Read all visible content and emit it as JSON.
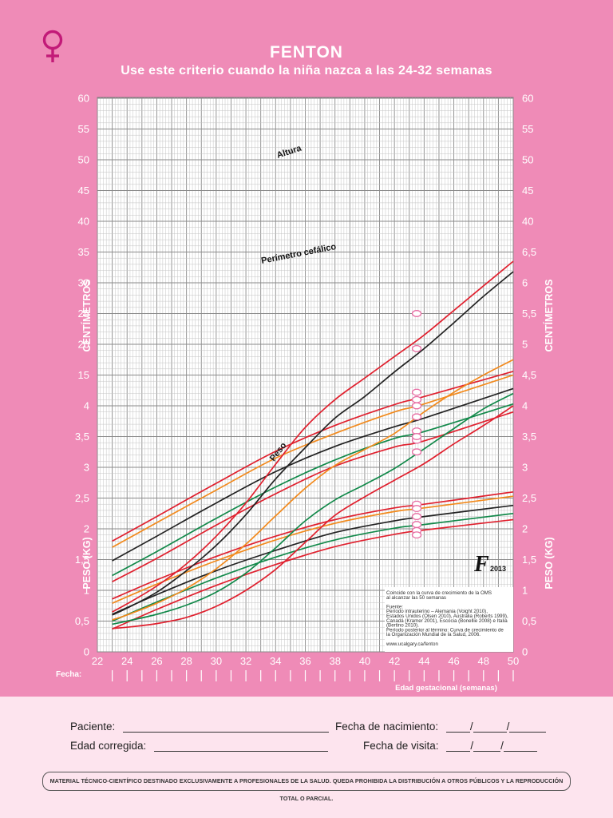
{
  "header": {
    "title": "FENTON",
    "subtitle": "Use este criterio cuando la niña nazca a las 24-32 semanas"
  },
  "chart_data": {
    "type": "line",
    "x": {
      "label": "Edad gestacional (semanas)",
      "range": [
        22,
        50
      ],
      "ticks": [
        "22",
        "24",
        "26",
        "28",
        "30",
        "32",
        "34",
        "36",
        "38",
        "40",
        "42",
        "44",
        "46",
        "48",
        "50"
      ]
    },
    "y_cm": {
      "label": "CENTÍMETROS",
      "ticks": [
        "15",
        "20",
        "25",
        "30",
        "35",
        "40",
        "45",
        "50",
        "55",
        "60"
      ]
    },
    "y_kg": {
      "label": "PESO (KG)",
      "ticks": [
        "0",
        "0,5",
        "1",
        "1,5",
        "2",
        "2,5",
        "3",
        "3,5",
        "4",
        "4,5",
        "5",
        "5,5",
        "6",
        "6,5"
      ]
    },
    "left_ticks": [
      "0",
      "0,5",
      "1",
      "1,5",
      "2",
      "2,5",
      "3",
      "3,5",
      "4",
      "15",
      "20",
      "25",
      "30",
      "35",
      "40",
      "45",
      "50",
      "55",
      "60"
    ],
    "right_ticks": [
      "0",
      "0,5",
      "1",
      "1,5",
      "2",
      "2,5",
      "3",
      "3,5",
      "4",
      "4,5",
      "5",
      "5,5",
      "6",
      "6,5",
      "40",
      "45",
      "50",
      "55",
      "60"
    ],
    "curve_labels": {
      "length": "Altura",
      "head": "Perímetro cefálico",
      "weight": "Peso"
    },
    "colors": {
      "p97": "#e0202e",
      "p90": "#f28a1d",
      "p50": "#222222",
      "p10": "#12894a",
      "p3": "#e0202e"
    },
    "length_cm": [
      {
        "percentile": "97",
        "x": [
          23,
          26,
          30,
          34,
          38,
          42,
          44,
          50
        ],
        "y": [
          33.0,
          37.0,
          42.4,
          47.6,
          51.8,
          55.2,
          56.5,
          60.6
        ]
      },
      {
        "percentile": "90",
        "x": [
          23,
          26,
          30,
          34,
          38,
          42,
          44,
          50
        ],
        "y": [
          32.0,
          36.0,
          41.3,
          46.5,
          50.5,
          54.0,
          55.3,
          60.0
        ]
      },
      {
        "percentile": "50",
        "x": [
          23,
          26,
          30,
          34,
          38,
          42,
          44,
          50
        ],
        "y": [
          29.8,
          33.8,
          39.2,
          44.3,
          48.4,
          51.6,
          53.0,
          57.8
        ]
      },
      {
        "percentile": "10",
        "x": [
          23,
          26,
          30,
          34,
          38,
          42,
          44,
          50
        ],
        "y": [
          27.4,
          31.3,
          36.7,
          41.8,
          46.2,
          49.7,
          50.8,
          55.3
        ]
      },
      {
        "percentile": "3",
        "x": [
          23,
          26,
          30,
          34,
          38,
          42,
          44,
          50
        ],
        "y": [
          26.4,
          30.2,
          35.6,
          40.7,
          45.2,
          48.3,
          49.3,
          54.0
        ]
      }
    ],
    "head_cm": [
      {
        "percentile": "97",
        "x": [
          23,
          26,
          30,
          34,
          38,
          42,
          44,
          50
        ],
        "y": [
          23.6,
          26.7,
          30.5,
          33.8,
          36.5,
          38.4,
          39.0,
          41.0
        ]
      },
      {
        "percentile": "90",
        "x": [
          23,
          26,
          30,
          34,
          38,
          42,
          44,
          50
        ],
        "y": [
          22.9,
          26.0,
          29.8,
          33.2,
          35.9,
          37.8,
          38.4,
          40.3
        ]
      },
      {
        "percentile": "50",
        "x": [
          23,
          26,
          30,
          34,
          38,
          42,
          44,
          50
        ],
        "y": [
          21.1,
          24.3,
          28.2,
          31.5,
          34.4,
          36.3,
          37.0,
          38.8
        ]
      },
      {
        "percentile": "10",
        "x": [
          23,
          26,
          30,
          34,
          38,
          42,
          44,
          50
        ],
        "y": [
          20.0,
          23.1,
          27.0,
          30.4,
          33.2,
          35.1,
          35.7,
          37.5
        ]
      },
      {
        "percentile": "3",
        "x": [
          23,
          26,
          30,
          34,
          38,
          42,
          44,
          50
        ],
        "y": [
          18.7,
          21.9,
          25.8,
          29.2,
          32.1,
          34.1,
          34.8,
          36.5
        ]
      }
    ],
    "weight_kg": [
      {
        "percentile": "97",
        "x": [
          23,
          24,
          26,
          28,
          30,
          32,
          34,
          36,
          38,
          40,
          42,
          44,
          46,
          48,
          50
        ],
        "y": [
          0.65,
          0.78,
          1.07,
          1.43,
          1.88,
          2.42,
          3.05,
          3.65,
          4.1,
          4.45,
          4.8,
          5.15,
          5.55,
          5.95,
          6.35
        ]
      },
      {
        "percentile": "90",
        "x": [
          23,
          24,
          26,
          28,
          30,
          32,
          34,
          36,
          38,
          40,
          42,
          44,
          46,
          48,
          50
        ],
        "y": [
          0.52,
          0.6,
          0.79,
          1.03,
          1.35,
          1.75,
          2.21,
          2.66,
          3.03,
          3.29,
          3.55,
          3.9,
          4.22,
          4.5,
          4.75
        ]
      },
      {
        "percentile": "50",
        "x": [
          23,
          24,
          26,
          28,
          30,
          32,
          34,
          36,
          38,
          40,
          42,
          44,
          46,
          48,
          50
        ],
        "y": [
          0.6,
          0.71,
          0.97,
          1.32,
          1.73,
          2.23,
          2.81,
          3.32,
          3.8,
          4.15,
          4.55,
          4.93,
          5.35,
          5.78,
          6.18
        ]
      },
      {
        "percentile": "10",
        "x": [
          23,
          24,
          26,
          28,
          30,
          32,
          34,
          36,
          38,
          40,
          42,
          44,
          46,
          48,
          50
        ],
        "y": [
          0.45,
          0.5,
          0.61,
          0.76,
          0.97,
          1.28,
          1.69,
          2.13,
          2.47,
          2.72,
          2.98,
          3.3,
          3.63,
          3.95,
          4.2
        ]
      },
      {
        "percentile": "3",
        "x": [
          23,
          24,
          26,
          28,
          30,
          32,
          34,
          36,
          38,
          40,
          42,
          44,
          46,
          48,
          50
        ],
        "y": [
          0.38,
          0.4,
          0.46,
          0.56,
          0.74,
          1.0,
          1.34,
          1.78,
          2.22,
          2.52,
          2.79,
          3.06,
          3.38,
          3.68,
          4.0
        ]
      }
    ],
    "bubbles": {
      "x": 43.5,
      "length_cm": [
        57.2,
        56.0,
        53.2,
        50.9,
        49.4
      ],
      "head_cm": [
        39.0,
        38.3,
        37.0,
        35.7,
        34.7,
        34.0
      ],
      "weight_kg": [
        5.5,
        4.93,
        4.0,
        3.5,
        3.25
      ]
    },
    "note_lines": [
      "Coincide con la curva de crecimiento de la OMS",
      "al alcanzar las 50 semanas",
      "",
      "Fuente:",
      "Período intrauterino – Alemania (Voight 2010),",
      "Estados Unidos (Olsen 2010), Australia (Roberts 1999),",
      "Canadá (Kramer 2001), Escocia (Bonellie 2008) e Italia",
      "(Bertino 2010).",
      "Período posterior al término: Curva de crecimiento de",
      "la Organización Mundial de la Salud, 2006.",
      "",
      "www.ucalgary.ca/fenton"
    ],
    "logo_year": "2013",
    "fecha_label": "Fecha:"
  },
  "form": {
    "patient_label": "Paciente:",
    "birth_label": "Fecha de nacimiento:",
    "corrected_label": "Edad corregida:",
    "visit_label": "Fecha de visita:",
    "date_sep": "/"
  },
  "footer": {
    "disclaimer": "MATERIAL TÉCNICO-CIENTÍFICO DESTINADO EXCLUSIVAMENTE A PROFESIONALES DE LA SALUD. QUEDA PROHIBIDA LA DISTRIBUCIÓN A OTROS PÚBLICOS Y LA REPRODUCCIÓN TOTAL O PARCIAL."
  }
}
